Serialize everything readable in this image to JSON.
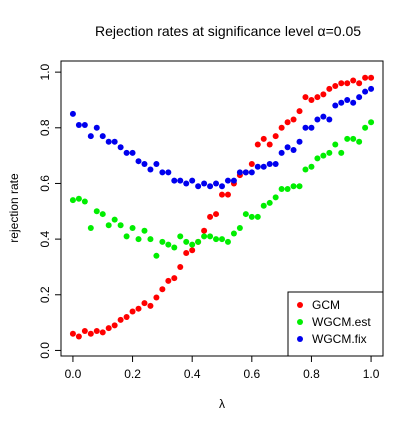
{
  "chart_data": {
    "type": "scatter",
    "title": "Rejection rates at significance level α=0.05",
    "xlabel": "λ",
    "ylabel": "rejection rate",
    "xlim": [
      -0.04,
      1.04
    ],
    "ylim": [
      -0.02,
      1.04
    ],
    "x_ticks": [
      "0.0",
      "0.2",
      "0.4",
      "0.6",
      "0.8",
      "1.0"
    ],
    "y_ticks": [
      "0.0",
      "0.2",
      "0.4",
      "0.6",
      "0.8",
      "1.0"
    ],
    "grid": false,
    "legend_position": "bottom-right",
    "series": [
      {
        "name": "GCM",
        "color": "#ff0000",
        "x": [
          0.0,
          0.02,
          0.04,
          0.06,
          0.08,
          0.1,
          0.12,
          0.14,
          0.16,
          0.18,
          0.2,
          0.22,
          0.24,
          0.26,
          0.28,
          0.3,
          0.32,
          0.34,
          0.36,
          0.38,
          0.4,
          0.42,
          0.44,
          0.46,
          0.48,
          0.5,
          0.52,
          0.54,
          0.56,
          0.58,
          0.6,
          0.62,
          0.64,
          0.66,
          0.68,
          0.7,
          0.72,
          0.74,
          0.76,
          0.78,
          0.8,
          0.82,
          0.84,
          0.86,
          0.88,
          0.9,
          0.92,
          0.94,
          0.96,
          0.98,
          1.0
        ],
        "y": [
          0.06,
          0.05,
          0.07,
          0.06,
          0.07,
          0.065,
          0.08,
          0.09,
          0.11,
          0.12,
          0.14,
          0.15,
          0.17,
          0.16,
          0.19,
          0.22,
          0.25,
          0.26,
          0.3,
          0.35,
          0.36,
          0.39,
          0.43,
          0.48,
          0.49,
          0.56,
          0.56,
          0.6,
          0.63,
          0.64,
          0.67,
          0.74,
          0.76,
          0.74,
          0.77,
          0.8,
          0.82,
          0.83,
          0.86,
          0.91,
          0.9,
          0.91,
          0.92,
          0.94,
          0.95,
          0.96,
          0.96,
          0.97,
          0.96,
          0.98,
          0.98
        ]
      },
      {
        "name": "WGCM.est",
        "color": "#00ee00",
        "x": [
          0.0,
          0.02,
          0.04,
          0.06,
          0.08,
          0.1,
          0.12,
          0.14,
          0.16,
          0.18,
          0.2,
          0.22,
          0.24,
          0.26,
          0.28,
          0.3,
          0.32,
          0.34,
          0.36,
          0.38,
          0.4,
          0.42,
          0.44,
          0.46,
          0.48,
          0.5,
          0.52,
          0.54,
          0.56,
          0.58,
          0.6,
          0.62,
          0.64,
          0.66,
          0.68,
          0.7,
          0.72,
          0.74,
          0.76,
          0.78,
          0.8,
          0.82,
          0.84,
          0.86,
          0.88,
          0.9,
          0.92,
          0.94,
          0.96,
          0.98,
          1.0
        ],
        "y": [
          0.54,
          0.545,
          0.535,
          0.44,
          0.5,
          0.49,
          0.45,
          0.47,
          0.45,
          0.41,
          0.44,
          0.4,
          0.43,
          0.4,
          0.34,
          0.39,
          0.38,
          0.37,
          0.41,
          0.39,
          0.38,
          0.39,
          0.41,
          0.41,
          0.4,
          0.4,
          0.39,
          0.42,
          0.44,
          0.49,
          0.48,
          0.48,
          0.52,
          0.53,
          0.55,
          0.58,
          0.58,
          0.59,
          0.59,
          0.65,
          0.66,
          0.69,
          0.7,
          0.71,
          0.74,
          0.71,
          0.76,
          0.76,
          0.75,
          0.8,
          0.82
        ]
      },
      {
        "name": "WGCM.fix",
        "color": "#0000ee",
        "x": [
          0.0,
          0.02,
          0.04,
          0.06,
          0.08,
          0.1,
          0.12,
          0.14,
          0.16,
          0.18,
          0.2,
          0.22,
          0.24,
          0.26,
          0.28,
          0.3,
          0.32,
          0.34,
          0.36,
          0.38,
          0.4,
          0.42,
          0.44,
          0.46,
          0.48,
          0.5,
          0.52,
          0.54,
          0.56,
          0.58,
          0.6,
          0.62,
          0.64,
          0.66,
          0.68,
          0.7,
          0.72,
          0.74,
          0.76,
          0.78,
          0.8,
          0.82,
          0.84,
          0.86,
          0.88,
          0.9,
          0.92,
          0.94,
          0.96,
          0.98,
          1.0
        ],
        "y": [
          0.85,
          0.81,
          0.81,
          0.77,
          0.8,
          0.77,
          0.75,
          0.75,
          0.73,
          0.71,
          0.71,
          0.68,
          0.67,
          0.65,
          0.67,
          0.64,
          0.64,
          0.61,
          0.61,
          0.6,
          0.61,
          0.59,
          0.6,
          0.59,
          0.6,
          0.59,
          0.61,
          0.61,
          0.64,
          0.64,
          0.64,
          0.66,
          0.66,
          0.67,
          0.67,
          0.71,
          0.73,
          0.72,
          0.75,
          0.8,
          0.8,
          0.83,
          0.84,
          0.83,
          0.88,
          0.89,
          0.9,
          0.89,
          0.91,
          0.93,
          0.94
        ]
      }
    ]
  }
}
